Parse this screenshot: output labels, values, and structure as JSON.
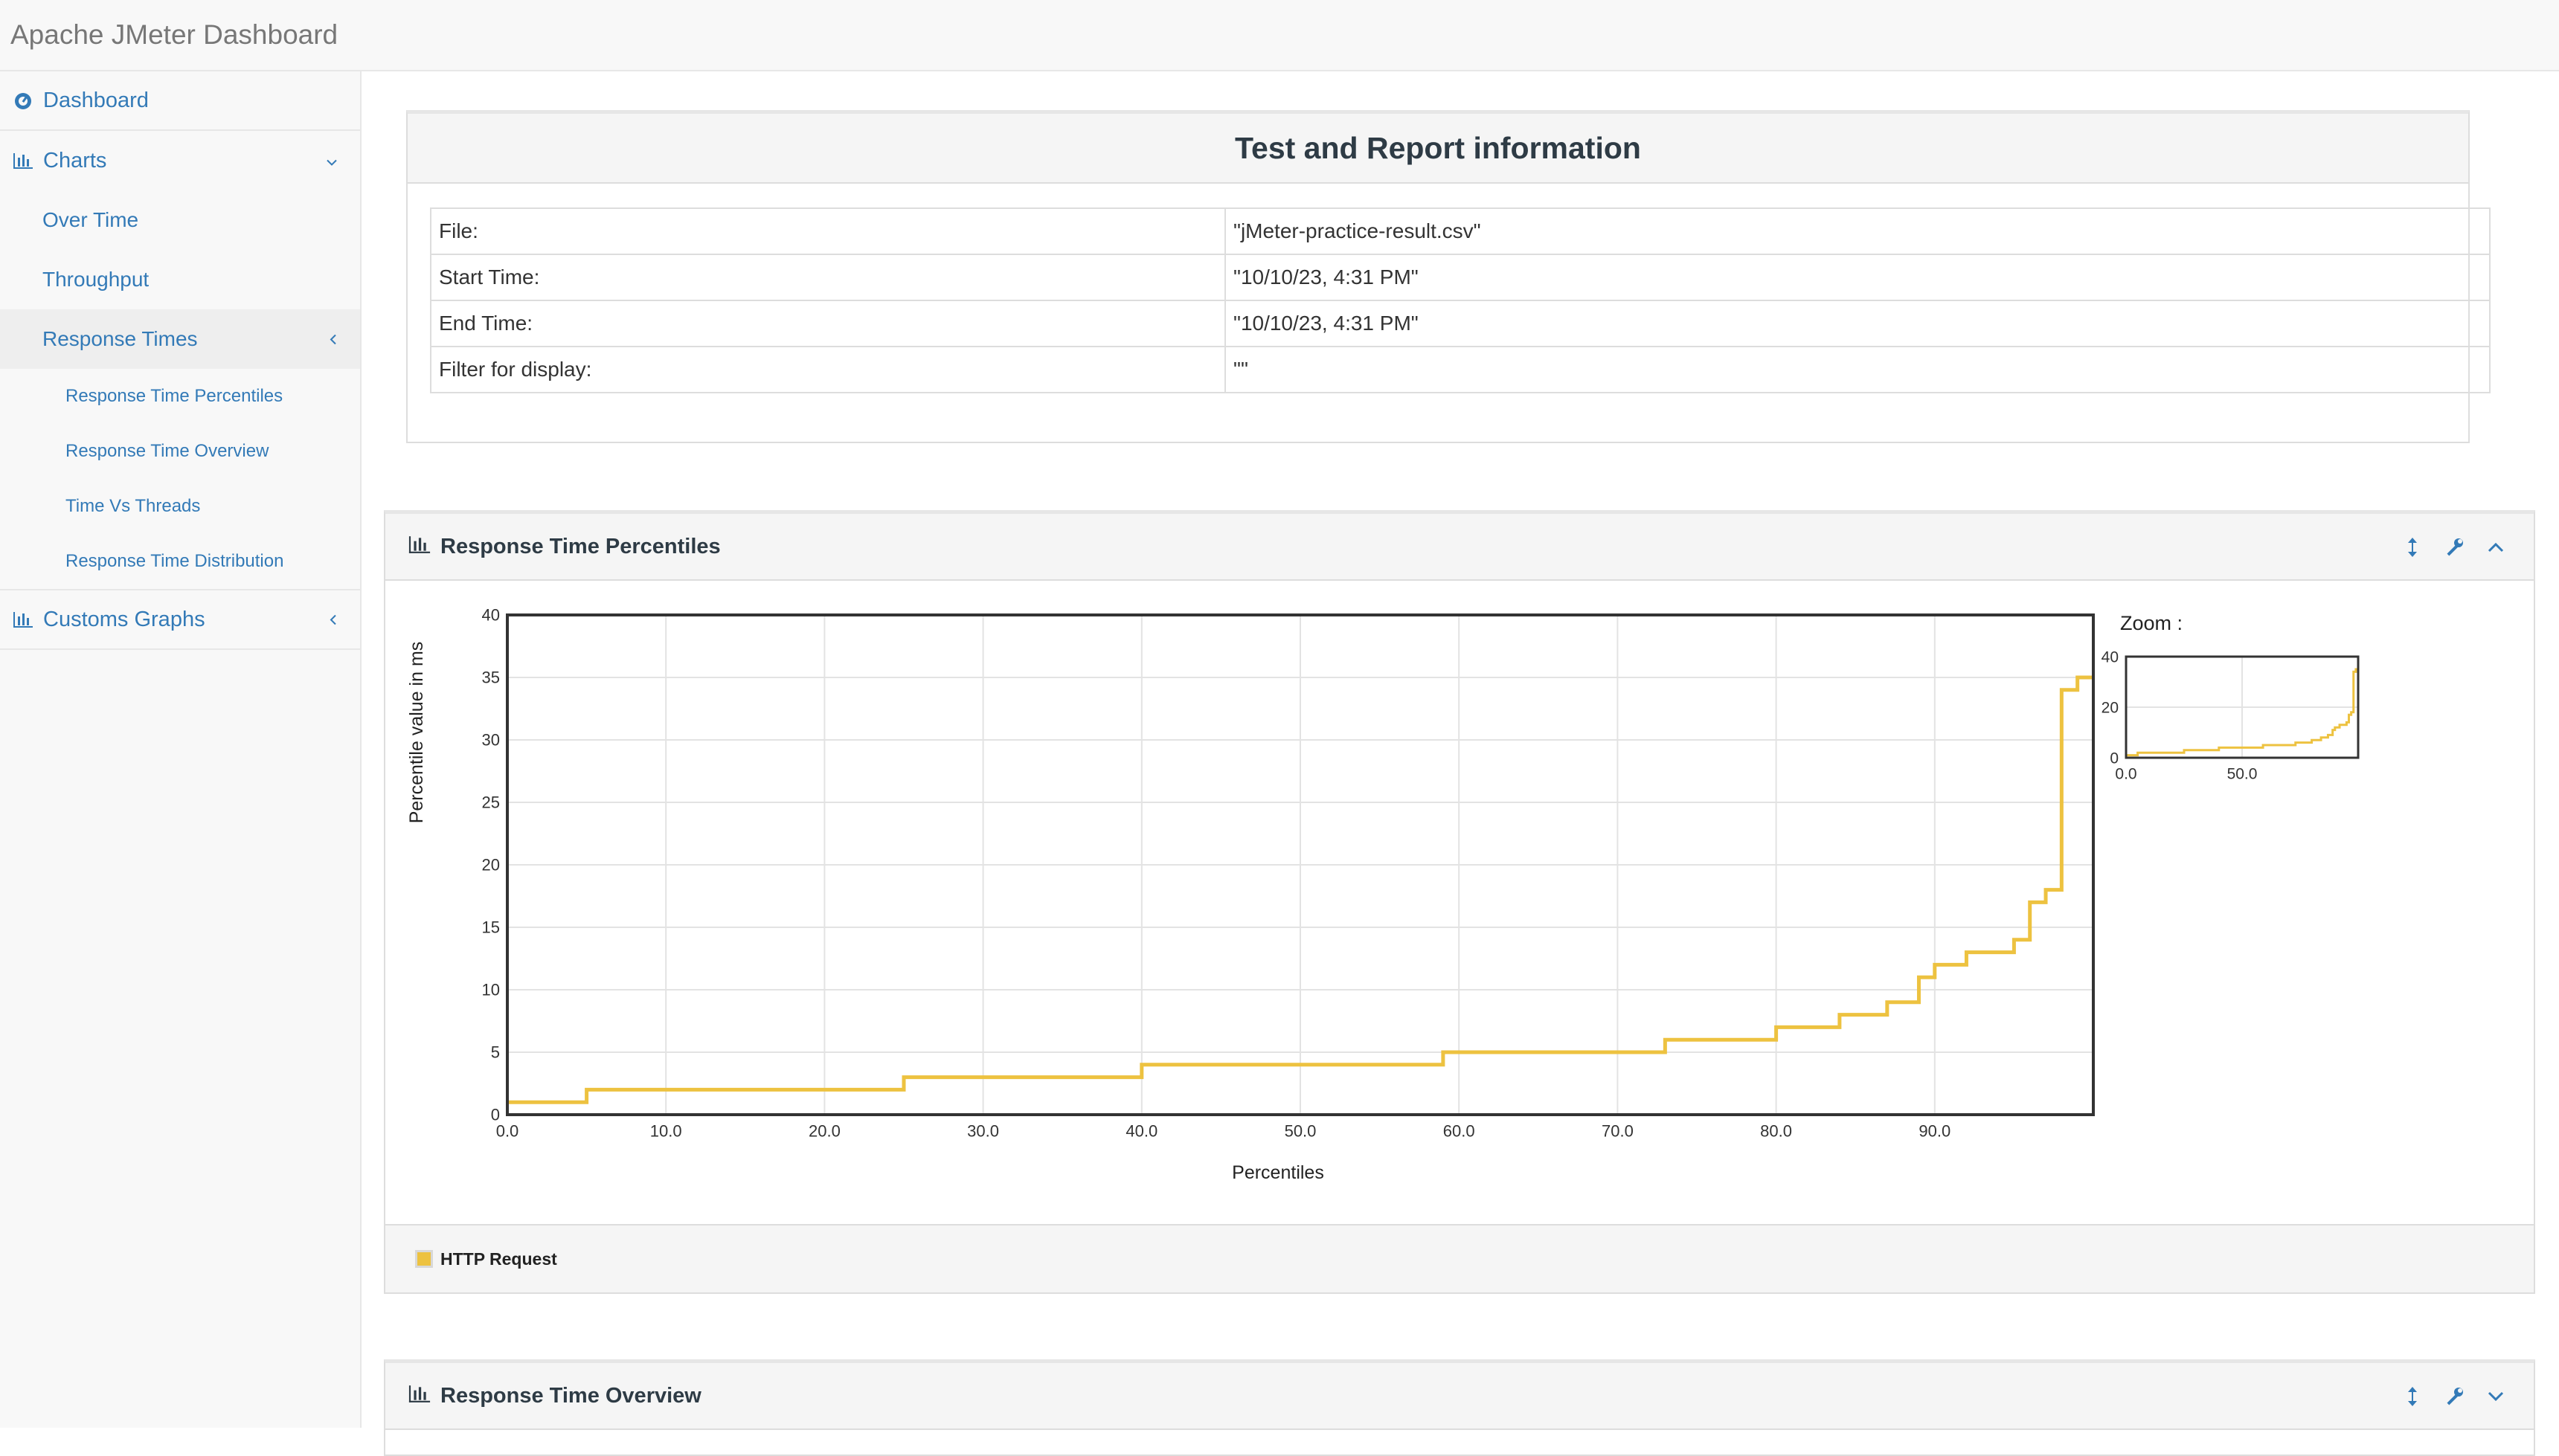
{
  "app": {
    "title": "Apache JMeter Dashboard"
  },
  "sidebar": {
    "dashboard": "Dashboard",
    "charts": "Charts",
    "over_time": "Over Time",
    "throughput": "Throughput",
    "response_times": "Response Times",
    "sub_items": [
      "Response Time Percentiles",
      "Response Time Overview",
      "Time Vs Threads",
      "Response Time Distribution"
    ],
    "customs_graphs": "Customs Graphs"
  },
  "info": {
    "title": "Test and Report information",
    "rows": [
      {
        "key": "File:",
        "value": "\"jMeter-practice-result.csv\""
      },
      {
        "key": "Start Time:",
        "value": "\"10/10/23, 4:31 PM\""
      },
      {
        "key": "End Time:",
        "value": "\"10/10/23, 4:31 PM\""
      },
      {
        "key": "Filter for display:",
        "value": "\"\""
      }
    ]
  },
  "percentiles_panel": {
    "title": "Response Time Percentiles",
    "zoom_label": "Zoom :",
    "legend": "HTTP Request"
  },
  "overview_panel": {
    "title": "Response Time Overview"
  },
  "colors": {
    "series": "#edc240",
    "link": "#337ab7"
  },
  "chart_data": {
    "type": "line",
    "xlabel": "Percentiles",
    "ylabel": "Percentile value in ms",
    "xlim": [
      0,
      100
    ],
    "ylim": [
      0,
      40
    ],
    "x_ticks": [
      "0.0",
      "10.0",
      "20.0",
      "30.0",
      "40.0",
      "50.0",
      "60.0",
      "70.0",
      "80.0",
      "90.0"
    ],
    "y_ticks": [
      "0",
      "5",
      "10",
      "15",
      "20",
      "25",
      "30",
      "35",
      "40"
    ],
    "grid": true,
    "legend_position": "bottom",
    "series": [
      {
        "name": "HTTP Request",
        "step_points": [
          [
            0,
            1
          ],
          [
            5,
            2
          ],
          [
            25,
            3
          ],
          [
            40,
            4
          ],
          [
            59,
            5
          ],
          [
            73,
            6
          ],
          [
            80,
            7
          ],
          [
            84,
            8
          ],
          [
            87,
            9
          ],
          [
            89,
            11
          ],
          [
            90,
            12
          ],
          [
            92,
            13
          ],
          [
            95,
            14
          ],
          [
            96,
            17
          ],
          [
            97,
            18
          ],
          [
            98,
            34
          ],
          [
            99,
            35
          ],
          [
            100,
            35
          ]
        ]
      }
    ],
    "zoom": {
      "xlim": [
        0,
        100
      ],
      "ylim": [
        0,
        40
      ],
      "x_ticks": [
        "0.0",
        "50.0"
      ],
      "y_ticks": [
        "0",
        "20",
        "40"
      ]
    }
  }
}
